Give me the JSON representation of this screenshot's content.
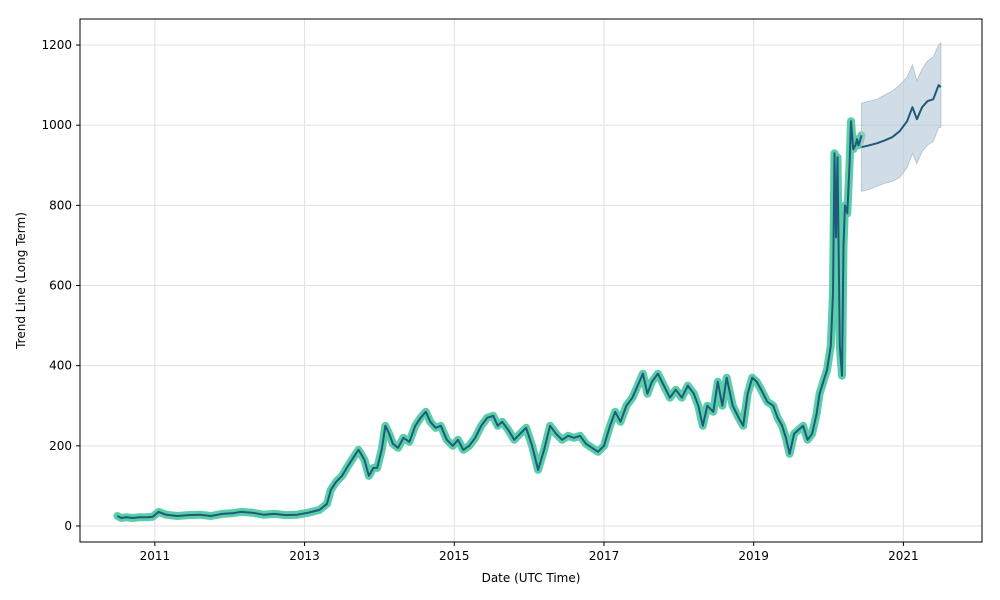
{
  "chart_data": {
    "type": "line",
    "title": "",
    "xlabel": "Date (UTC Time)",
    "ylabel": "Trend Line (Long Term)",
    "xlim": [
      2010.0,
      2022.05
    ],
    "ylim": [
      -40,
      1265
    ],
    "grid": true,
    "x_ticks": [
      {
        "value": 2011,
        "label": "2011"
      },
      {
        "value": 2013,
        "label": "2013"
      },
      {
        "value": 2015,
        "label": "2015"
      },
      {
        "value": 2017,
        "label": "2017"
      },
      {
        "value": 2019,
        "label": "2019"
      },
      {
        "value": 2021,
        "label": "2021"
      }
    ],
    "y_ticks": [
      {
        "value": 0,
        "label": "0"
      },
      {
        "value": 200,
        "label": "200"
      },
      {
        "value": 400,
        "label": "400"
      },
      {
        "value": 600,
        "label": "600"
      },
      {
        "value": 800,
        "label": "800"
      },
      {
        "value": 1000,
        "label": "1000"
      },
      {
        "value": 1200,
        "label": "1200"
      }
    ],
    "colors": {
      "history_band": "#48c9a0",
      "history_line": "#1f5a7a",
      "forecast_line": "#1f5a7a",
      "forecast_band": "#b3c7d6",
      "grid": "#e0e0e0"
    },
    "series": [
      {
        "role": "history",
        "x": [
          2010.5,
          2010.55,
          2010.62,
          2010.7,
          2010.8,
          2010.9,
          2010.97,
          2011.05,
          2011.15,
          2011.3,
          2011.45,
          2011.6,
          2011.75,
          2011.9,
          2012.05,
          2012.15,
          2012.3,
          2012.45,
          2012.6,
          2012.75,
          2012.9,
          2013.05,
          2013.2,
          2013.3,
          2013.35,
          2013.42,
          2013.5,
          2013.58,
          2013.65,
          2013.72,
          2013.8,
          2013.86,
          2013.92,
          2013.97,
          2014.03,
          2014.08,
          2014.13,
          2014.18,
          2014.25,
          2014.32,
          2014.4,
          2014.48,
          2014.55,
          2014.62,
          2014.68,
          2014.75,
          2014.82,
          2014.9,
          2014.98,
          2015.05,
          2015.12,
          2015.2,
          2015.28,
          2015.36,
          2015.44,
          2015.52,
          2015.58,
          2015.64,
          2015.72,
          2015.8,
          2015.88,
          2015.96,
          2016.04,
          2016.12,
          2016.2,
          2016.28,
          2016.36,
          2016.44,
          2016.52,
          2016.6,
          2016.68,
          2016.76,
          2016.84,
          2016.92,
          2017.0,
          2017.08,
          2017.15,
          2017.22,
          2017.3,
          2017.38,
          2017.45,
          2017.52,
          2017.58,
          2017.64,
          2017.72,
          2017.8,
          2017.88,
          2017.96,
          2018.04,
          2018.12,
          2018.2,
          2018.26,
          2018.32,
          2018.38,
          2018.46,
          2018.52,
          2018.58,
          2018.64,
          2018.72,
          2018.8,
          2018.86,
          2018.92,
          2018.98,
          2019.04,
          2019.1,
          2019.18,
          2019.26,
          2019.32,
          2019.38,
          2019.43,
          2019.48,
          2019.54,
          2019.6,
          2019.66,
          2019.72,
          2019.78,
          2019.84,
          2019.88,
          2019.93,
          2019.98,
          2020.03,
          2020.06,
          2020.08,
          2020.1,
          2020.12,
          2020.15,
          2020.18,
          2020.2,
          2020.22,
          2020.25,
          2020.28,
          2020.3,
          2020.33,
          2020.36,
          2020.38,
          2020.4,
          2020.42,
          2020.44
        ],
        "y": [
          25,
          20,
          22,
          20,
          22,
          22,
          23,
          35,
          28,
          25,
          27,
          28,
          25,
          30,
          32,
          35,
          33,
          28,
          30,
          27,
          28,
          33,
          40,
          55,
          90,
          110,
          125,
          150,
          170,
          190,
          165,
          125,
          145,
          145,
          190,
          250,
          230,
          205,
          195,
          220,
          210,
          250,
          270,
          285,
          260,
          245,
          250,
          215,
          200,
          215,
          190,
          200,
          220,
          250,
          270,
          275,
          250,
          260,
          240,
          215,
          230,
          245,
          200,
          140,
          190,
          250,
          230,
          215,
          225,
          220,
          225,
          205,
          195,
          185,
          200,
          250,
          285,
          260,
          300,
          320,
          350,
          380,
          330,
          360,
          380,
          350,
          320,
          340,
          320,
          350,
          330,
          300,
          250,
          300,
          285,
          360,
          300,
          370,
          300,
          270,
          250,
          330,
          370,
          360,
          340,
          310,
          300,
          270,
          250,
          220,
          180,
          230,
          240,
          250,
          215,
          230,
          280,
          330,
          360,
          390,
          450,
          580,
          930,
          720,
          920,
          450,
          375,
          700,
          800,
          780,
          900,
          1010,
          940,
          950,
          965,
          950,
          960,
          975
        ]
      },
      {
        "role": "forecast",
        "x": [
          2020.44,
          2020.55,
          2020.65,
          2020.75,
          2020.85,
          2020.95,
          2021.05,
          2021.12,
          2021.18,
          2021.25,
          2021.32,
          2021.4,
          2021.47,
          2021.5
        ],
        "y": [
          945,
          950,
          955,
          962,
          970,
          985,
          1010,
          1045,
          1015,
          1045,
          1060,
          1065,
          1100,
          1095
        ],
        "upper": [
          1055,
          1060,
          1065,
          1075,
          1085,
          1100,
          1120,
          1150,
          1110,
          1140,
          1160,
          1170,
          1200,
          1205
        ],
        "lower": [
          835,
          840,
          848,
          855,
          860,
          870,
          895,
          930,
          905,
          935,
          950,
          960,
          995,
          995
        ]
      }
    ]
  }
}
